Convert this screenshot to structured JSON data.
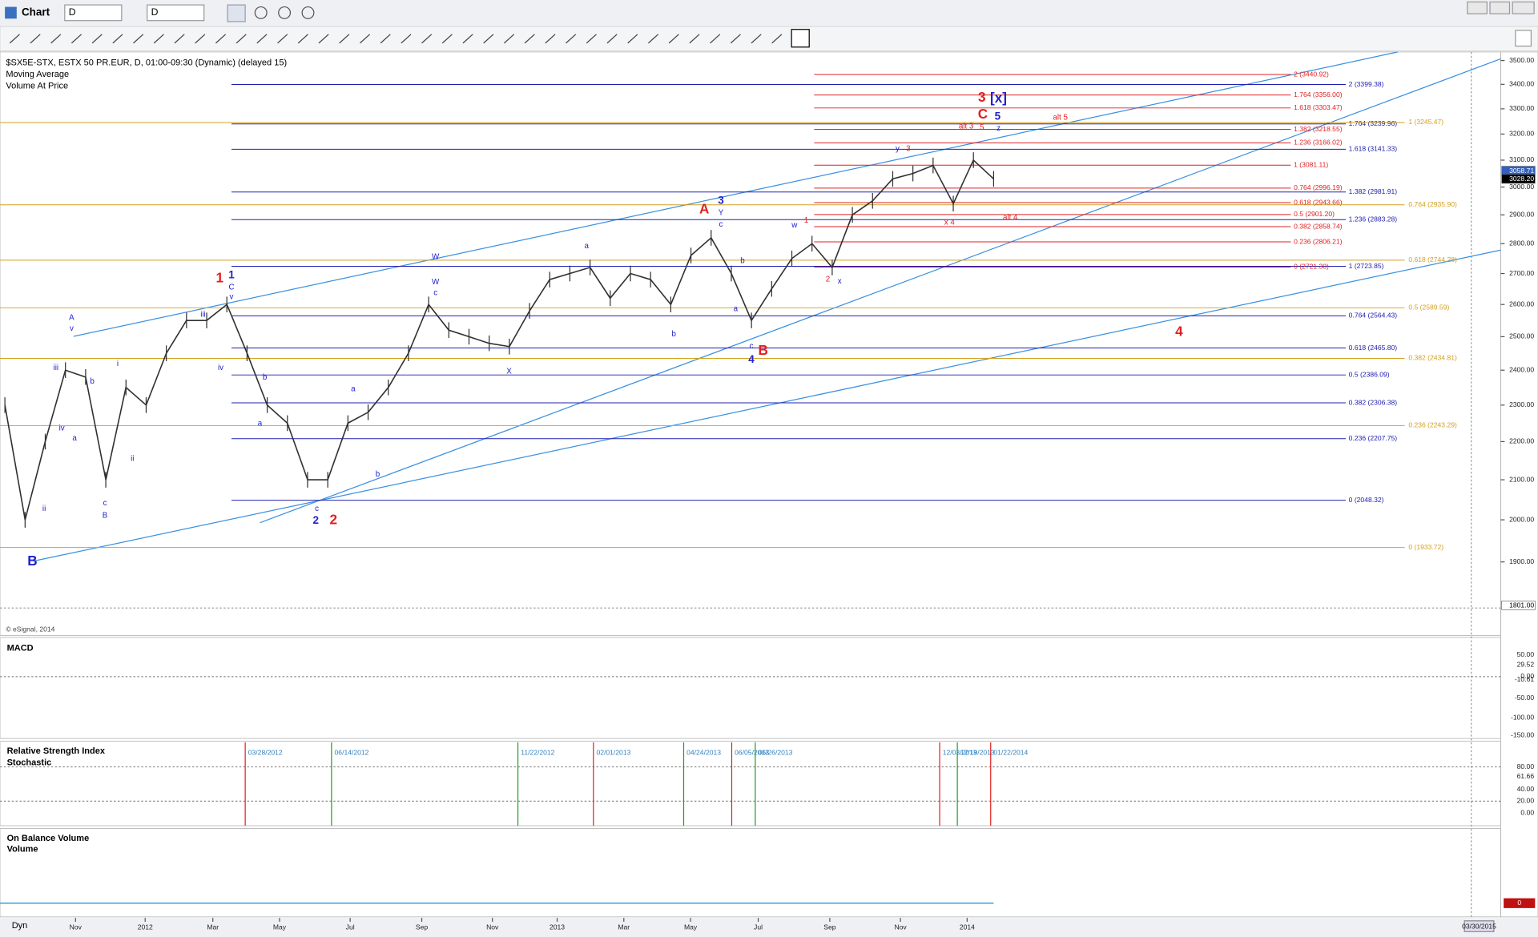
{
  "toolbar": {
    "title": "Chart",
    "interval_1": "D",
    "interval_2": "D"
  },
  "chart_info": {
    "symbol": "$SX5E-STX, ESTX 50 PR.EUR, D, 01:00-09:30 (Dynamic) (delayed 15)",
    "study_1": "Moving Average",
    "study_2": "Volume At Price",
    "credit": "© eSignal, 2014"
  },
  "price_axis": {
    "log": true,
    "ticks": [
      {
        "value": 1900,
        "label": "1900.00"
      },
      {
        "value": 2000,
        "label": "2000.00"
      },
      {
        "value": 2100,
        "label": "2100.00"
      },
      {
        "value": 2200,
        "label": "2200.00"
      },
      {
        "value": 2300,
        "label": "2300.00"
      },
      {
        "value": 2400,
        "label": "2400.00"
      },
      {
        "value": 2500,
        "label": "2500.00"
      },
      {
        "value": 2600,
        "label": "2600.00"
      },
      {
        "value": 2700,
        "label": "2700.00"
      },
      {
        "value": 2800,
        "label": "2800.00"
      },
      {
        "value": 2900,
        "label": "2900.00"
      },
      {
        "value": 3000,
        "label": "3000.00"
      },
      {
        "value": 3100,
        "label": "3100.00"
      },
      {
        "value": 3200,
        "label": "3200.00"
      },
      {
        "value": 3300,
        "label": "3300.00"
      },
      {
        "value": 3400,
        "label": "3400.00"
      },
      {
        "value": 3500,
        "label": "3500.00"
      }
    ],
    "tags": [
      {
        "value": 3058.71,
        "label": "3058.71",
        "color": "#3060c0"
      },
      {
        "value": 3028.2,
        "label": "3028.20",
        "color": "#000000"
      },
      {
        "value": 1801,
        "label": "1801.00",
        "color": "#ffffff"
      }
    ]
  },
  "price_series": {
    "color": "#303030",
    "values": [
      2300,
      2000,
      2200,
      2400,
      2380,
      2100,
      2350,
      2300,
      2450,
      2550,
      2550,
      2600,
      2450,
      2300,
      2250,
      2100,
      2100,
      2250,
      2280,
      2350,
      2450,
      2600,
      2520,
      2500,
      2480,
      2470,
      2580,
      2680,
      2700,
      2720,
      2620,
      2700,
      2680,
      2600,
      2760,
      2820,
      2700,
      2550,
      2650,
      2750,
      2800,
      2720,
      2900,
      2950,
      3030,
      3050,
      3080,
      2940,
      3100,
      3030
    ]
  },
  "x_axis": {
    "labels": [
      "Nov",
      "2012",
      "Mar",
      "May",
      "Jul",
      "Sep",
      "Nov",
      "2013",
      "Mar",
      "May",
      "Jul",
      "Sep",
      "Nov",
      "2014"
    ],
    "date_box": "03/30/2015",
    "mode": "Dyn"
  },
  "fib_blue": {
    "color": "#2020b0",
    "levels": [
      {
        "label": "2 (3399.38)",
        "price": 3399.38
      },
      {
        "label": "1.764 (3239.96)",
        "price": 3239.96
      },
      {
        "label": "1.618 (3141.33)",
        "price": 3141.33
      },
      {
        "label": "1.382 (2981.91)",
        "price": 2981.91
      },
      {
        "label": "1.236 (2883.28)",
        "price": 2883.28
      },
      {
        "label": "1 (2723.85)",
        "price": 2723.85
      },
      {
        "label": "0.764 (2564.43)",
        "price": 2564.43
      },
      {
        "label": "0.618 (2465.80)",
        "price": 2465.8
      },
      {
        "label": "0.5 (2386.09)",
        "price": 2386.09
      },
      {
        "label": "0.382 (2306.38)",
        "price": 2306.38
      },
      {
        "label": "0.236 (2207.75)",
        "price": 2207.75
      },
      {
        "label": "0 (2048.32)",
        "price": 2048.32
      }
    ]
  },
  "fib_red": {
    "color": "#e02020",
    "levels": [
      {
        "label": "2 (3440.92)",
        "price": 3440.92
      },
      {
        "label": "1.764 (3356.00)",
        "price": 3356
      },
      {
        "label": "1.618 (3303.47)",
        "price": 3303.47
      },
      {
        "label": "1.382 (3218.55)",
        "price": 3218.55
      },
      {
        "label": "1.236 (3166.02)",
        "price": 3166.02
      },
      {
        "label": "1 (3081.11)",
        "price": 3081.11
      },
      {
        "label": "0.764 (2996.19)",
        "price": 2996.19
      },
      {
        "label": "0.618 (2943.66)",
        "price": 2943.66
      },
      {
        "label": "0.5 (2901.20)",
        "price": 2901.2
      },
      {
        "label": "0.382 (2858.74)",
        "price": 2858.74
      },
      {
        "label": "0.236 (2806.21)",
        "price": 2806.21
      },
      {
        "label": "0 (2721.30)",
        "price": 2721.3
      }
    ]
  },
  "fib_gold": {
    "color": "#d4a020",
    "levels": [
      {
        "label": "1 (3245.47)",
        "price": 3245.47
      },
      {
        "label": "0.764 (2935.90)",
        "price": 2935.9
      },
      {
        "label": "0.618 (2744.28)",
        "price": 2744.28
      },
      {
        "label": "0.5 (2589.59)",
        "price": 2589.59
      },
      {
        "label": "0.382 (2434.81)",
        "price": 2434.81
      },
      {
        "label": "0.236 (2243.29)",
        "price": 2243.29
      },
      {
        "label": "0 (1933.72)",
        "price": 1933.72
      }
    ]
  },
  "wave_labels": [
    {
      "text": "1",
      "color": "#e02020",
      "size": "big"
    },
    {
      "text": "2",
      "color": "#e02020",
      "size": "big"
    },
    {
      "text": "A",
      "color": "#e02020",
      "size": "big"
    },
    {
      "text": "B",
      "color": "#e02020",
      "size": "big"
    },
    {
      "text": "3",
      "color": "#e02020",
      "size": "big"
    },
    {
      "text": "C",
      "color": "#e02020",
      "size": "big"
    },
    {
      "text": "4",
      "color": "#e02020",
      "size": "big"
    },
    {
      "text": "alt 3",
      "color": "#e02020",
      "size": "small"
    },
    {
      "text": "alt 5",
      "color": "#e02020",
      "size": "small"
    },
    {
      "text": "alt 4",
      "color": "#e02020",
      "size": "small"
    },
    {
      "text": "2",
      "color": "#e02020",
      "size": "small"
    },
    {
      "text": "3",
      "color": "#e02020",
      "size": "small"
    },
    {
      "text": "x 4",
      "color": "#e02020",
      "size": "small"
    },
    {
      "text": "5",
      "color": "#e02020",
      "size": "small"
    },
    {
      "text": "1",
      "color": "#e02020",
      "size": "small"
    },
    {
      "text": "B",
      "color": "#2020d0",
      "size": "big"
    },
    {
      "text": "2",
      "color": "#2020d0",
      "size": "mid"
    },
    {
      "text": "4",
      "color": "#2020d0",
      "size": "mid"
    },
    {
      "text": "[x]",
      "color": "#2020d0",
      "size": "big"
    },
    {
      "text": "5",
      "color": "#2020d0",
      "size": "mid"
    },
    {
      "text": "3",
      "color": "#2020d0",
      "size": "mid"
    },
    {
      "text": "Y",
      "color": "#2020d0",
      "size": "small"
    },
    {
      "text": "1",
      "color": "#2020d0",
      "size": "mid"
    },
    {
      "text": "W",
      "color": "#2020d0",
      "size": "small"
    },
    {
      "text": "X",
      "color": "#2020d0",
      "size": "small"
    },
    {
      "text": "a",
      "color": "#2020d0",
      "size": "small"
    },
    {
      "text": "b",
      "color": "#2020d0",
      "size": "small"
    },
    {
      "text": "c",
      "color": "#2020d0",
      "size": "small"
    },
    {
      "text": "a",
      "color": "#2020d0",
      "size": "small"
    },
    {
      "text": "b",
      "color": "#2020d0",
      "size": "small"
    },
    {
      "text": "c",
      "color": "#2020d0",
      "size": "small"
    },
    {
      "text": "w",
      "color": "#2020d0",
      "size": "small"
    },
    {
      "text": "x",
      "color": "#2020d0",
      "size": "small"
    },
    {
      "text": "y",
      "color": "#2020d0",
      "size": "small"
    },
    {
      "text": "A",
      "color": "#2020d0",
      "size": "small"
    },
    {
      "text": "B",
      "color": "#2020d0",
      "size": "small"
    },
    {
      "text": "c",
      "color": "#2020d0",
      "size": "small"
    },
    {
      "text": "c",
      "color": "#2020d0",
      "size": "small"
    },
    {
      "text": "b",
      "color": "#2020d0",
      "size": "small"
    },
    {
      "text": "a",
      "color": "#2020d0",
      "size": "small"
    },
    {
      "text": "iii",
      "color": "#2020d0",
      "size": "small"
    },
    {
      "text": "iv",
      "color": "#2020d0",
      "size": "small"
    },
    {
      "text": "ii",
      "color": "#2020d0",
      "size": "small"
    },
    {
      "text": "i",
      "color": "#2020d0",
      "size": "small"
    },
    {
      "text": "ii",
      "color": "#2020d0",
      "size": "small"
    },
    {
      "text": "iv",
      "color": "#2020d0",
      "size": "small"
    },
    {
      "text": "iii",
      "color": "#2020d0",
      "size": "small"
    },
    {
      "text": "b",
      "color": "#2020d0",
      "size": "small"
    },
    {
      "text": "a",
      "color": "#2020d0",
      "size": "small"
    },
    {
      "text": "v",
      "color": "#2020d0",
      "size": "small"
    },
    {
      "text": "C",
      "color": "#2020d0",
      "size": "small"
    },
    {
      "text": "v",
      "color": "#2020d0",
      "size": "small"
    },
    {
      "text": "a",
      "color": "#2020d0",
      "size": "small"
    },
    {
      "text": "b",
      "color": "#2020d0",
      "size": "small"
    },
    {
      "text": "W",
      "color": "#2020d0",
      "size": "small"
    },
    {
      "text": "c",
      "color": "#2020d0",
      "size": "small"
    },
    {
      "text": "z",
      "color": "#2020d0",
      "size": "small"
    }
  ],
  "macd": {
    "title": "MACD",
    "axis_labels": [
      "50.00",
      "29.52",
      "0.00",
      "-10.61",
      "-50.00",
      "-100.00",
      "-150.00"
    ]
  },
  "rsi": {
    "title_1": "Relative Strength Index",
    "title_2": "Stochastic",
    "axis_labels": [
      "80.00",
      "61.66",
      "40.00",
      "20.00",
      "0.00"
    ],
    "markers": [
      {
        "date": "03/28/2012",
        "color": "#e02020"
      },
      {
        "date": "06/14/2012",
        "color": "#20a020"
      },
      {
        "date": "11/22/2012",
        "color": "#20a020"
      },
      {
        "date": "02/01/2013",
        "color": "#e02020"
      },
      {
        "date": "04/24/2013",
        "color": "#20a020"
      },
      {
        "date": "06/05/2013",
        "color": "#e02020"
      },
      {
        "date": "06/26/2013",
        "color": "#20a020"
      },
      {
        "date": "12/03/2013",
        "color": "#e02020"
      },
      {
        "date": "12/19/2013",
        "color": "#20a020"
      },
      {
        "date": "01/22/2014",
        "color": "#e02020"
      }
    ]
  },
  "obv": {
    "title_1": "On Balance Volume",
    "title_2": "Volume",
    "axis_label": "0"
  }
}
